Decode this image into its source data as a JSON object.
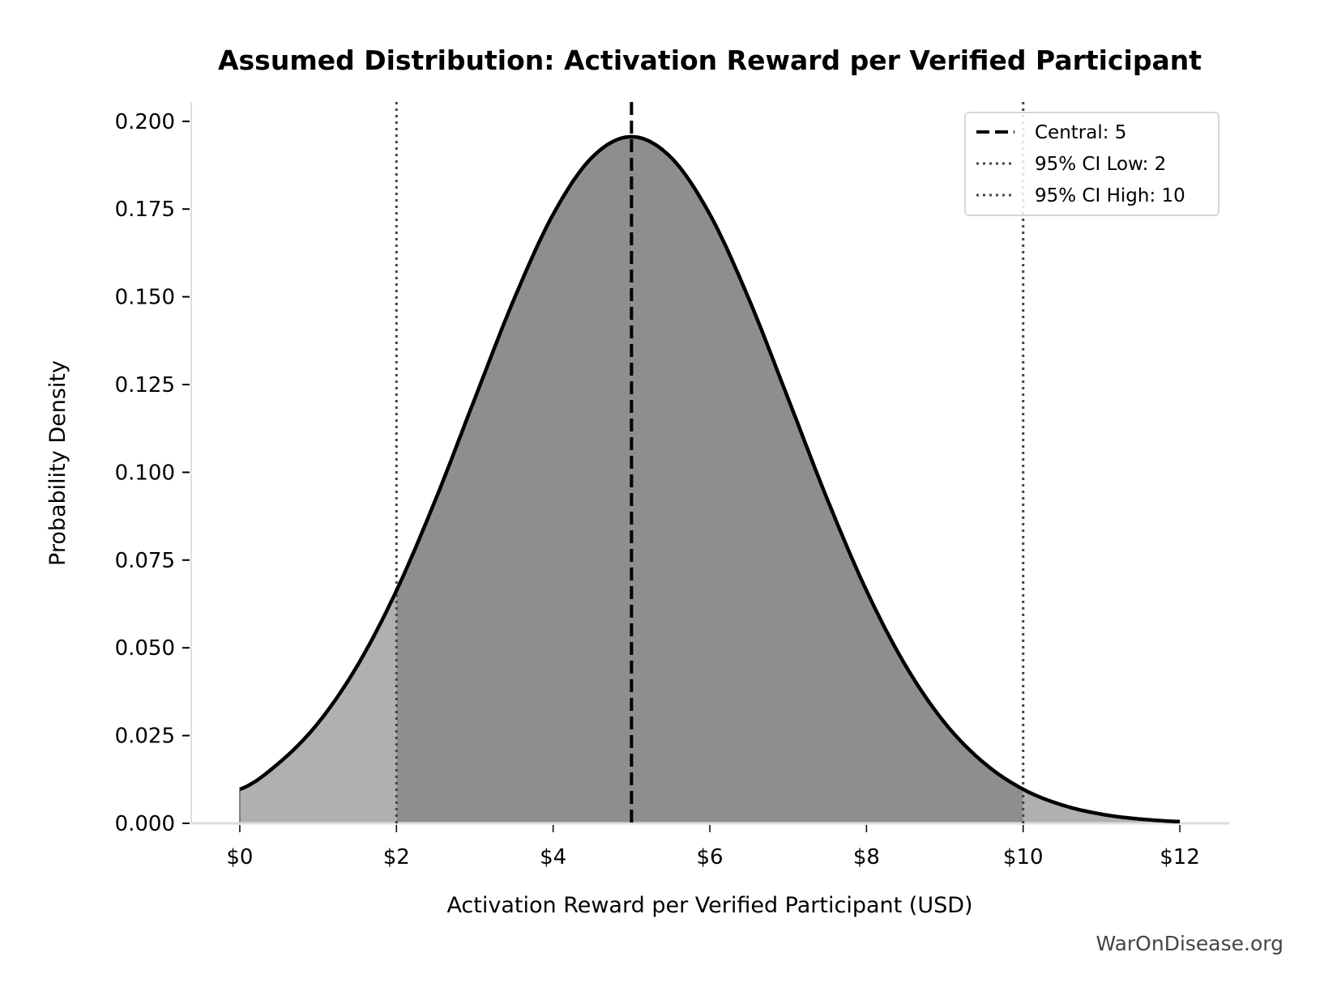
{
  "chart_data": {
    "type": "area",
    "title": "Assumed Distribution: Activation Reward per Verified Participant",
    "xlabel": "Activation Reward per Verified Participant (USD)",
    "ylabel": "Probability Density",
    "xlim": [
      -0.62,
      12.63
    ],
    "ylim": [
      0,
      0.2055
    ],
    "x_ticks": [
      0,
      2,
      4,
      6,
      8,
      10,
      12
    ],
    "x_tick_labels": [
      "$0",
      "$2",
      "$4",
      "$6",
      "$8",
      "$10",
      "$12"
    ],
    "y_ticks": [
      0,
      0.025,
      0.05,
      0.075,
      0.1,
      0.125,
      0.15,
      0.175,
      0.2
    ],
    "y_tick_labels": [
      "0.000",
      "0.025",
      "0.050",
      "0.075",
      "0.100",
      "0.125",
      "0.150",
      "0.175",
      "0.200"
    ],
    "grid": false,
    "legend_position": "top-right",
    "series": {
      "x": [
        0,
        0.5,
        1,
        1.5,
        2,
        2.5,
        3,
        3.5,
        4,
        4.5,
        5,
        5.5,
        6,
        6.5,
        7,
        7.5,
        8,
        8.5,
        9,
        9.5,
        10,
        10.5,
        11,
        11.5,
        12
      ],
      "y": [
        0.0097,
        0.0172,
        0.0286,
        0.0449,
        0.0663,
        0.0923,
        0.121,
        0.1493,
        0.1735,
        0.1898,
        0.1956,
        0.1898,
        0.1735,
        0.1493,
        0.121,
        0.0923,
        0.0663,
        0.0449,
        0.0286,
        0.0172,
        0.0097,
        0.0052,
        0.0026,
        0.0012,
        0.0005
      ]
    },
    "reference_lines": [
      {
        "label": "Central: 5",
        "x": 5,
        "style": "dashed",
        "color": "#000000"
      },
      {
        "label": "95% CI Low: 2",
        "x": 2,
        "style": "dotted",
        "color": "#444444"
      },
      {
        "label": "95% CI High: 10",
        "x": 10,
        "style": "dotted",
        "color": "#444444"
      }
    ],
    "fill_colors": {
      "tails": "#b0b0b0",
      "ci_band": "#8e8e8e"
    },
    "curve_color": "#000000"
  },
  "watermark": "WarOnDisease.org"
}
